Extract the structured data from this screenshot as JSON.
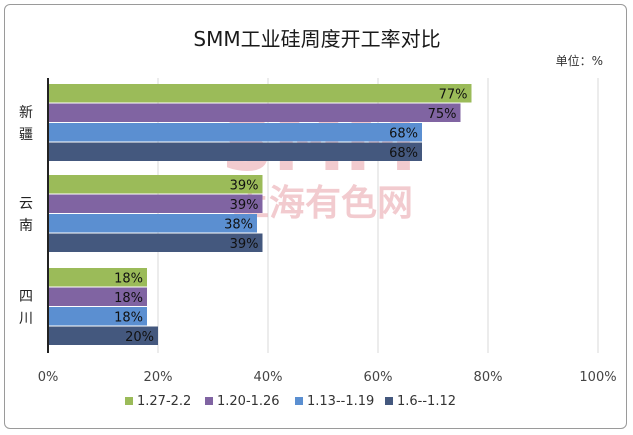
{
  "chart_data": {
    "type": "bar",
    "orientation": "horizontal",
    "title": "SMM工业硅周度开工率对比",
    "unit_label": "单位：%",
    "categories": [
      "新疆",
      "云南",
      "四川"
    ],
    "series": [
      {
        "name": "1.27-2.2",
        "color": "#9bbb59",
        "values": [
          77,
          39,
          18
        ]
      },
      {
        "name": "1.20-1.26",
        "color": "#8064a2",
        "values": [
          75,
          39,
          18
        ]
      },
      {
        "name": "1.13--1.19",
        "color": "#5b8fd1",
        "values": [
          68,
          38,
          18
        ]
      },
      {
        "name": "1.6--1.12",
        "color": "#44587e",
        "values": [
          68,
          39,
          20
        ]
      }
    ],
    "xlim": [
      0,
      100
    ],
    "x_ticks": [
      "0%",
      "20%",
      "40%",
      "60%",
      "80%",
      "100%"
    ],
    "data_label_suffix": "%",
    "grid": true,
    "legend_position": "bottom"
  },
  "watermark": {
    "line1": "SMM",
    "line2": "上海有色网"
  }
}
